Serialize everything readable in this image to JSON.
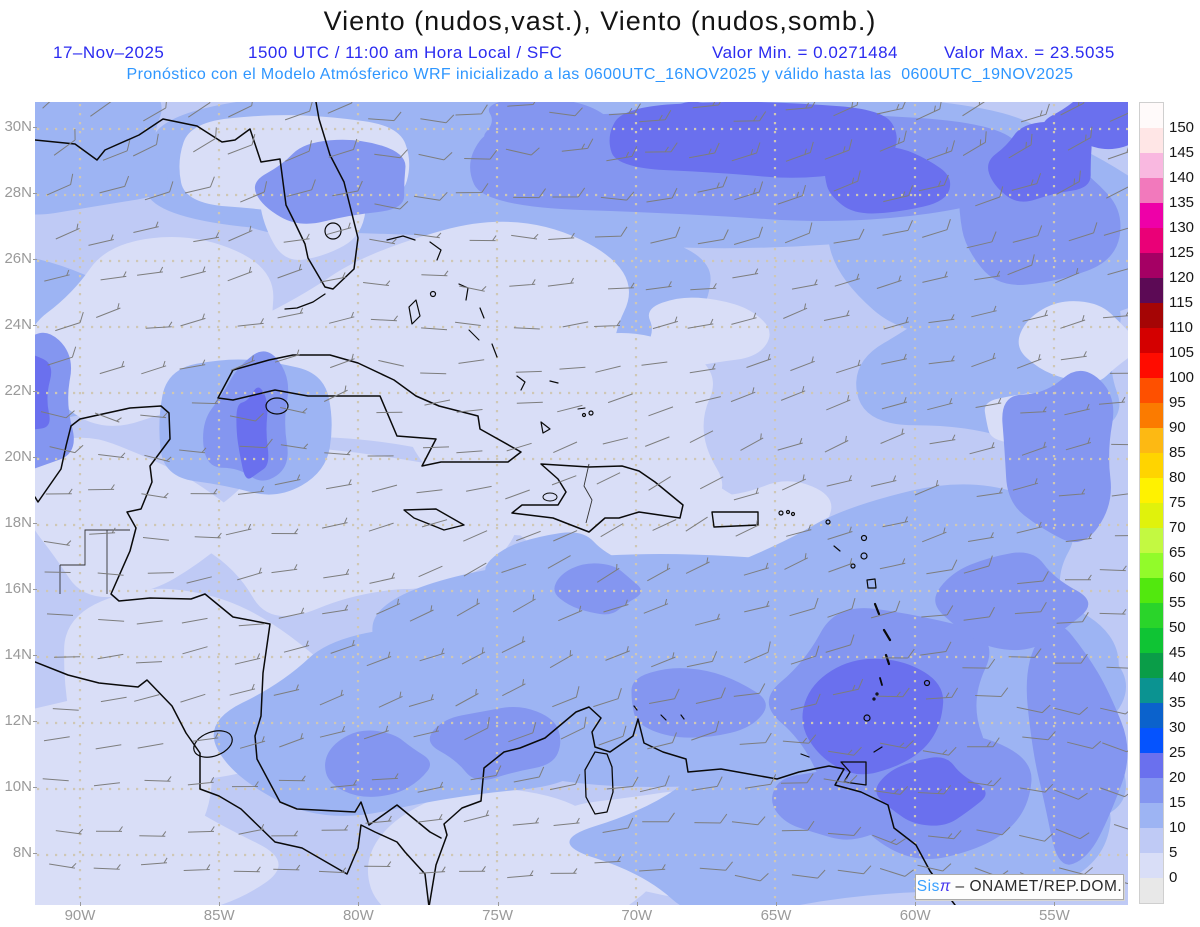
{
  "header": {
    "title": "Viento (nudos,vast.), Viento (nudos,somb.)",
    "date": "17–Nov–2025",
    "run_info": "1500 UTC / 11:00 am Hora Local / SFC",
    "min_label": "Valor Min. = 0.0271484",
    "max_label": "Valor Max. = 23.5035",
    "model_info": "Pronóstico con el Modelo Atmósferico WRF inicializado a las 0600UTC_16NOV2025 y válido hasta las  0600UTC_19NOV2025",
    "title_color": "#141414",
    "info_color": "#2b2bf0",
    "model_color": "#2e96ff"
  },
  "axes": {
    "lat_labels": [
      "30N",
      "28N",
      "26N",
      "24N",
      "22N",
      "20N",
      "18N",
      "16N",
      "14N",
      "12N",
      "10N",
      "8N"
    ],
    "lon_labels": [
      "90W",
      "85W",
      "80W",
      "75W",
      "70W",
      "65W",
      "60W",
      "55W"
    ],
    "label_color": "#9a9a9a"
  },
  "colorbar": {
    "tick_labels": [
      "0",
      "5",
      "10",
      "15",
      "20",
      "25",
      "30",
      "35",
      "40",
      "45",
      "50",
      "55",
      "60",
      "65",
      "70",
      "75",
      "80",
      "85",
      "90",
      "95",
      "100",
      "105",
      "110",
      "115",
      "120",
      "125",
      "130",
      "135",
      "140",
      "145",
      "150"
    ],
    "colors_bottom_to_top": [
      "#e8e8e8",
      "#d9def7",
      "#bfcaf5",
      "#9db4f3",
      "#8496f0",
      "#6a70ee",
      "#0553fe",
      "#0b62cc",
      "#0b9391",
      "#0a9d48",
      "#0fc434",
      "#2ad42a",
      "#52e80e",
      "#92fb2a",
      "#c3f941",
      "#e0f20c",
      "#fff200",
      "#ffd400",
      "#fdb913",
      "#fb7b00",
      "#fe5000",
      "#ff0c00",
      "#d40000",
      "#a50505",
      "#5c0a55",
      "#a50064",
      "#ea0077",
      "#ee00a8",
      "#f279bc",
      "#f9b8e0",
      "#ffe6e6",
      "#fffafa"
    ],
    "label_color": "#161616"
  },
  "map": {
    "band_colors": {
      "kt_0_5": "#d9def7",
      "kt_5_10": "#bfcaf5",
      "kt_10_15": "#9db4f3",
      "kt_15_20": "#8496f0",
      "kt_20_25": "#6a70ee"
    },
    "grid_dot_color": "#cfc7b5",
    "coast_color": "#0a0a0a",
    "barb_color": "#7d7d7d"
  },
  "watermark": {
    "sis": "Sis",
    "pi": "π",
    "rest": " – ONAMET/REP.DOM.",
    "sis_color": "#3aa0ff",
    "pi_color": "#4433ee"
  }
}
